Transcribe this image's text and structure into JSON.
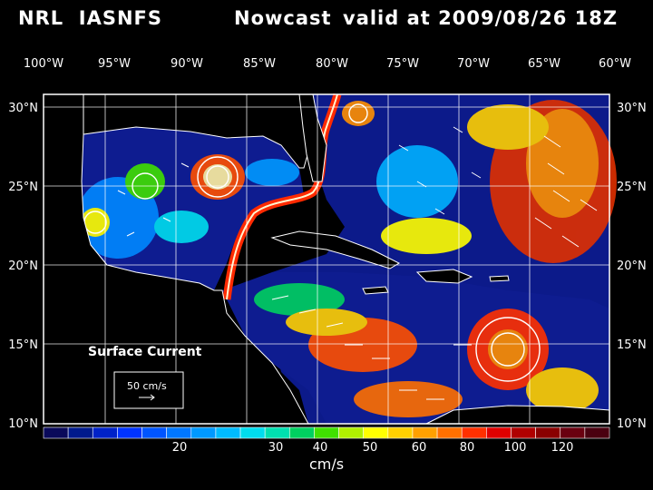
{
  "header": {
    "left": "NRL  IASNFS",
    "center": "Nowcast",
    "right": "valid at 2009/08/26 18Z"
  },
  "map": {
    "lon_labels": [
      "100°W",
      "95°W",
      "90°W",
      "85°W",
      "80°W",
      "75°W",
      "70°W",
      "65°W",
      "60°W"
    ],
    "lat_labels": [
      "30°N",
      "25°N",
      "20°N",
      "15°N",
      "10°N"
    ],
    "overlay_title": "Surface Current",
    "reference_vector": "50 cm/s"
  },
  "colorbar": {
    "tick_labels": [
      "20",
      "30",
      "40",
      "50",
      "60",
      "80",
      "100",
      "120"
    ],
    "units": "cm/s",
    "colors": [
      "#0a0a5a",
      "#001a8c",
      "#0022c8",
      "#0033ff",
      "#0055ff",
      "#0077ff",
      "#0099ff",
      "#00bbff",
      "#00ddee",
      "#00e0b0",
      "#00d060",
      "#40e000",
      "#b0f000",
      "#ffff00",
      "#ffd000",
      "#ffa000",
      "#ff7000",
      "#ff3000",
      "#e00000",
      "#b00000",
      "#8a0000",
      "#6a0010",
      "#4a0010"
    ]
  }
}
